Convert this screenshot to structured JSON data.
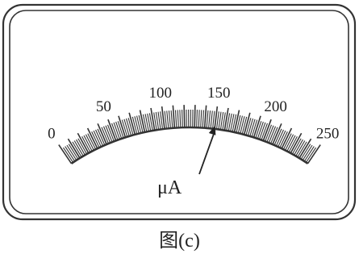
{
  "meter": {
    "unit": "μA",
    "scale": {
      "min": 0,
      "max": 250,
      "labels": [
        "0",
        "50",
        "100",
        "150",
        "200",
        "250"
      ],
      "minor_step": 2,
      "major_step": 10
    },
    "reading": 150
  },
  "caption": "图(c)"
}
